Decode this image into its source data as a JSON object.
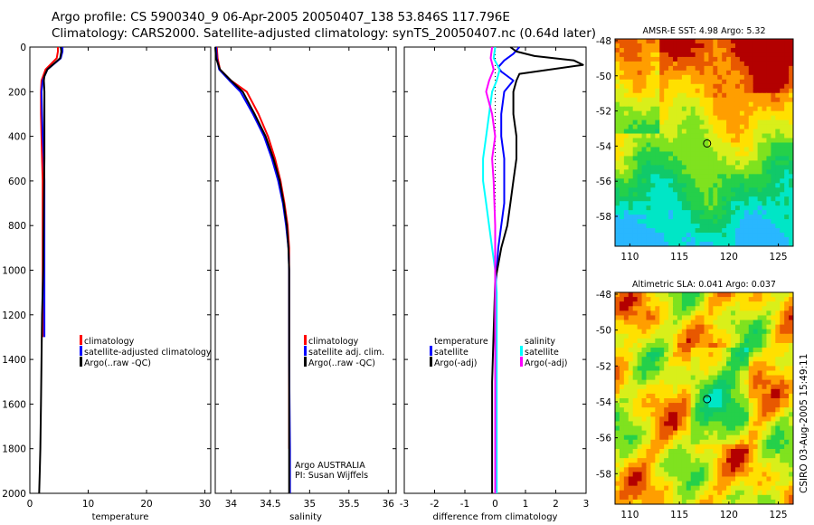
{
  "titles": {
    "line1": "Argo profile: CS 5900340_9 06-Apr-2005 20050407_138 53.846S 117.796E",
    "line2": "Climatology: CARS2000. Satellite-adjusted climatology: synTS_20050407.nc (0.64d later)"
  },
  "footer": "CSIRO 03-Aug-2005 15:49:11",
  "colors": {
    "climatology": "#ff0000",
    "satellite": "#0000ff",
    "argo": "#000000",
    "salinity": "#ff00ff",
    "sal_satellite": "#00ffff"
  },
  "map_colors": {
    "ramp": [
      "#29b7ff",
      "#00e6c6",
      "#10c96a",
      "#25d04a",
      "#7fe21f",
      "#d9ef1a",
      "#ffe000",
      "#ff9e00",
      "#e85800",
      "#b30000"
    ]
  },
  "chart_data": [
    {
      "type": "line",
      "xlabel": "temperature",
      "xlim": [
        0,
        31
      ],
      "ylim": [
        2000,
        0
      ],
      "x_ticks": [
        0,
        10,
        20,
        30
      ],
      "y_ticks": [
        0,
        200,
        400,
        600,
        800,
        1000,
        1200,
        1400,
        1600,
        1800,
        2000
      ],
      "legend": [
        {
          "label": "climatology",
          "color": "#ff0000"
        },
        {
          "label": "satellite-adjusted climatology",
          "color": "#0000ff"
        },
        {
          "label": "Argo(..raw -QC)",
          "color": "#000000"
        }
      ],
      "series": [
        {
          "name": "climatology",
          "color": "#ff0000",
          "x": [
            4.8,
            4.8,
            4.6,
            2.7,
            2.0,
            1.9,
            1.9,
            2.0,
            2.1,
            2.2,
            2.2,
            2.2,
            2.2
          ],
          "y": [
            0,
            20,
            50,
            100,
            150,
            200,
            300,
            400,
            500,
            600,
            700,
            800,
            1300
          ]
        },
        {
          "name": "satellite-adjusted climatology",
          "color": "#0000ff",
          "x": [
            5.6,
            5.6,
            5.3,
            3.0,
            2.2,
            2.0,
            2.1,
            2.2,
            2.4,
            2.5,
            2.5,
            2.5,
            2.5
          ],
          "y": [
            0,
            20,
            50,
            100,
            150,
            200,
            300,
            400,
            500,
            600,
            800,
            1000,
            1300
          ]
        },
        {
          "name": "Argo(..raw -QC)",
          "color": "#000000",
          "x": [
            5.3,
            5.4,
            5.2,
            3.0,
            2.5,
            2.4,
            2.5,
            2.5,
            2.5,
            2.4,
            2.3,
            2.1,
            2.0,
            1.9,
            1.8,
            1.7,
            1.6
          ],
          "y": [
            0,
            20,
            50,
            100,
            130,
            150,
            200,
            300,
            500,
            700,
            1000,
            1200,
            1400,
            1600,
            1800,
            1900,
            2000
          ]
        }
      ]
    },
    {
      "type": "line",
      "xlabel": "salinity",
      "xlim": [
        33.8,
        36.1
      ],
      "ylim": [
        2000,
        0
      ],
      "x_ticks": [
        34,
        34.5,
        35,
        35.5,
        36
      ],
      "legend": [
        {
          "label": "climatology",
          "color": "#ff0000"
        },
        {
          "label": "satellite adj. clim.",
          "color": "#0000ff"
        },
        {
          "label": "Argo(..raw -QC)",
          "color": "#000000"
        }
      ],
      "annotations": [
        "Argo AUSTRALIA",
        "PI: Susan Wijffels"
      ],
      "series": [
        {
          "name": "climatology",
          "color": "#ff0000",
          "x": [
            33.82,
            33.83,
            33.86,
            34.0,
            34.2,
            34.35,
            34.47,
            34.56,
            34.63,
            34.68,
            34.72,
            34.74,
            34.74,
            34.74,
            34.74
          ],
          "y": [
            0,
            50,
            100,
            150,
            200,
            300,
            400,
            500,
            600,
            700,
            800,
            900,
            1000,
            1400,
            1800
          ]
        },
        {
          "name": "satellite adj. clim.",
          "color": "#0000ff",
          "x": [
            33.81,
            33.82,
            33.85,
            33.98,
            34.12,
            34.28,
            34.42,
            34.52,
            34.6,
            34.66,
            34.7,
            34.73,
            34.74,
            34.74,
            34.75,
            34.75
          ],
          "y": [
            0,
            50,
            100,
            150,
            200,
            300,
            400,
            500,
            600,
            700,
            800,
            900,
            1000,
            1400,
            1800,
            2000
          ]
        },
        {
          "name": "Argo(..raw -QC)",
          "color": "#000000",
          "x": [
            33.8,
            33.81,
            33.86,
            34.0,
            34.15,
            34.3,
            34.44,
            34.54,
            34.62,
            34.67,
            34.71,
            34.73,
            34.74,
            34.74,
            34.74,
            34.74
          ],
          "y": [
            0,
            50,
            100,
            150,
            200,
            300,
            400,
            500,
            600,
            700,
            800,
            900,
            1000,
            1400,
            1800,
            2000
          ]
        }
      ]
    },
    {
      "type": "line",
      "xlabel": "difference from climatology",
      "xlim": [
        -3,
        3
      ],
      "ylim": [
        2000,
        0
      ],
      "x_ticks": [
        -3,
        -2,
        -1,
        0,
        1,
        2,
        3
      ],
      "legend_left": [
        {
          "label": "temperature",
          "color": ""
        },
        {
          "label": "satellite",
          "color": "#0000ff"
        },
        {
          "label": "Argo(-adj)",
          "color": "#000000"
        }
      ],
      "legend_right": [
        {
          "label": "salinity",
          "color": ""
        },
        {
          "label": "satellite",
          "color": "#00ffff"
        },
        {
          "label": "Argo(-adj)",
          "color": "#ff00ff"
        }
      ],
      "series": [
        {
          "name": "temperature satellite",
          "color": "#0000ff",
          "x": [
            0.8,
            0.6,
            0.3,
            0.1,
            0.2,
            0.4,
            0.6,
            0.3,
            0.2,
            0.2,
            0.3,
            0.3,
            0.3,
            0.2,
            0.1,
            0.05,
            0.0,
            0.0
          ],
          "y": [
            0,
            30,
            60,
            90,
            110,
            130,
            150,
            200,
            300,
            400,
            500,
            600,
            700,
            800,
            900,
            1000,
            1100,
            2000
          ]
        },
        {
          "name": "temperature Argo(-adj)",
          "color": "#000000",
          "x": [
            0.5,
            0.7,
            1.3,
            2.6,
            2.9,
            0.8,
            0.7,
            0.6,
            0.6,
            0.7,
            0.7,
            0.6,
            0.5,
            0.4,
            0.2,
            0.0,
            -0.1,
            -0.1
          ],
          "y": [
            0,
            20,
            40,
            60,
            80,
            120,
            150,
            200,
            300,
            400,
            500,
            600,
            700,
            800,
            900,
            1050,
            1500,
            2000
          ]
        },
        {
          "name": "salinity satellite",
          "color": "#00ffff",
          "x": [
            0.0,
            -0.05,
            0.15,
            0.05,
            -0.1,
            -0.2,
            -0.3,
            -0.4,
            -0.4,
            -0.3,
            -0.2,
            -0.1,
            0.0,
            0.05,
            0.05
          ],
          "y": [
            0,
            50,
            100,
            150,
            200,
            300,
            400,
            500,
            600,
            700,
            800,
            900,
            1000,
            1100,
            2000
          ]
        },
        {
          "name": "salinity Argo(-adj)",
          "color": "#ff00ff",
          "x": [
            -0.1,
            -0.15,
            -0.05,
            -0.2,
            -0.3,
            -0.1,
            0.0,
            -0.1,
            -0.05,
            0.0,
            0.0,
            0.0,
            0.0
          ],
          "y": [
            0,
            50,
            100,
            150,
            200,
            300,
            400,
            500,
            600,
            800,
            1000,
            1100,
            2000
          ]
        }
      ]
    },
    {
      "type": "heatmap",
      "title": "AMSR-E SST: 4.98 Argo: 5.32",
      "xlim": [
        108.5,
        126.5
      ],
      "ylim": [
        -59.7,
        -47.9
      ],
      "x_ticks": [
        110,
        115,
        120,
        125
      ],
      "y_ticks": [
        -48,
        -50,
        -52,
        -54,
        -56,
        -58
      ],
      "marker": {
        "lon": 117.8,
        "lat": -53.85
      }
    },
    {
      "type": "heatmap",
      "title": "Altimetric SLA: 0.041 Argo: 0.037",
      "xlim": [
        108.5,
        126.5
      ],
      "ylim": [
        -59.7,
        -47.9
      ],
      "x_ticks": [
        110,
        115,
        120,
        125
      ],
      "y_ticks": [
        -48,
        -50,
        -52,
        -54,
        -56,
        -58
      ],
      "marker": {
        "lon": 117.8,
        "lat": -53.85
      }
    }
  ]
}
